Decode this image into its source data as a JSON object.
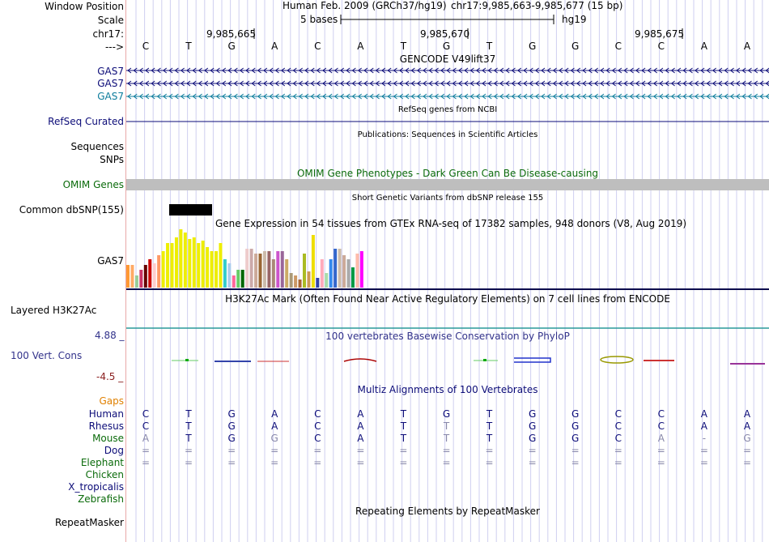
{
  "header": {
    "window_position_label": "Window Position",
    "scale_label": "Scale",
    "chrom_label": "chr17:",
    "strand_label": "--->",
    "assembly": "Human Feb. 2009 (GRCh37/hg19)",
    "position": "chr17:9,985,663-9,985,677 (15 bp)",
    "scale_text": "5 bases",
    "db": "hg19",
    "coords": [
      "9,985,665",
      "9,985,670",
      "9,985,675"
    ]
  },
  "sequence": [
    "C",
    "T",
    "G",
    "A",
    "C",
    "A",
    "T",
    "G",
    "T",
    "G",
    "G",
    "C",
    "C",
    "A",
    "A"
  ],
  "gencode": {
    "title": "GENCODE V49lift37",
    "tracks": [
      {
        "label": "GAS7",
        "color": "#0c0c78"
      },
      {
        "label": "GAS7",
        "color": "#0c0c78"
      },
      {
        "label": "GAS7",
        "color": "#0c7c9c"
      }
    ]
  },
  "refseq": {
    "title": "RefSeq genes from NCBI",
    "label": "RefSeq Curated",
    "color": "#0c0c78"
  },
  "publications": {
    "title": "Publications: Sequences in Scientific Articles",
    "labels": [
      "Sequences",
      "SNPs"
    ]
  },
  "omim": {
    "title": "OMIM Gene Phenotypes - Dark Green Can Be Disease-causing",
    "label": "OMIM Genes",
    "color": "#0b6b0b"
  },
  "dbsnp": {
    "title": "Short Genetic Variants from dbSNP release 155",
    "label": "Common dbSNP(155)"
  },
  "gtex": {
    "title": "Gene Expression in 54 tissues from GTEx RNA-seq of 17382 samples, 948 donors (V8, Aug 2019)",
    "label": "GAS7",
    "values": [
      28,
      28,
      15,
      22,
      28,
      35,
      30,
      40,
      45,
      55,
      55,
      62,
      72,
      68,
      60,
      62,
      55,
      58,
      50,
      45,
      45,
      55,
      35,
      30,
      15,
      22,
      22,
      48,
      48,
      42,
      42,
      45,
      45,
      35,
      45,
      45,
      35,
      18,
      15,
      10,
      42,
      20,
      65,
      12,
      35,
      18,
      35,
      48,
      48,
      40,
      35,
      25,
      42,
      45
    ],
    "colors": [
      "#ff9933",
      "#ffaa66",
      "#99cc99",
      "#cc3366",
      "#660000",
      "#cc0000",
      "#ffcccc",
      "#ff9966",
      "#eeee00",
      "#eeee00",
      "#eeee00",
      "#eeee00",
      "#eeee00",
      "#eeee00",
      "#eeee00",
      "#eeee00",
      "#eeee00",
      "#eeee00",
      "#eeee00",
      "#eeee00",
      "#eeee00",
      "#eeee00",
      "#33cccc",
      "#aaccee",
      "#ff6699",
      "#66cc66",
      "#006600",
      "#eecccc",
      "#ccaaaa",
      "#ccaa99",
      "#996633",
      "#ccbbaa",
      "#996666",
      "#aa8877",
      "#cc55cc",
      "#996699",
      "#ccaa66",
      "#aa9977",
      "#cc9966",
      "#aa6633",
      "#aabb22",
      "#cc9955",
      "#eedd00",
      "#3344aa",
      "#ffaabb",
      "#aaddaa",
      "#3388ee",
      "#3366cc",
      "#ccbbaa",
      "#ccaa99",
      "#aaaaaa",
      "#009944",
      "#ffbbaa",
      "#ff00ff"
    ]
  },
  "h3k27ac": {
    "title": "H3K27Ac Mark (Often Found Near Active Regulatory Elements) on 7 cell lines from ENCODE",
    "label": "Layered H3K27Ac"
  },
  "conservation": {
    "title": "100 vertebrates Basewise Conservation by PhyloP",
    "label": "100 Vert. Cons",
    "max": "4.88 _",
    "min": "-4.5 _"
  },
  "multiz": {
    "title": "Multiz Alignments of 100 Vertebrates",
    "gaps_label": "Gaps",
    "species": [
      {
        "name": "Human",
        "color": "#0c0c78",
        "bases": [
          "C",
          "T",
          "G",
          "A",
          "C",
          "A",
          "T",
          "G",
          "T",
          "G",
          "G",
          "C",
          "C",
          "A",
          "A"
        ]
      },
      {
        "name": "Rhesus",
        "color": "#0c0c78",
        "bases": [
          "C",
          "T",
          "G",
          "A",
          "C",
          "A",
          "T",
          "T",
          "T",
          "G",
          "G",
          "C",
          "C",
          "A",
          "A"
        ]
      },
      {
        "name": "Mouse",
        "color": "#0b6b0b",
        "bases": [
          "A",
          "T",
          "G",
          "G",
          "C",
          "A",
          "T",
          "T",
          "T",
          "G",
          "G",
          "C",
          "A",
          "-",
          "G"
        ]
      },
      {
        "name": "Dog",
        "color": "#0c0c78",
        "bases": [
          "=",
          "=",
          "=",
          "=",
          "=",
          "=",
          "=",
          "=",
          "=",
          "=",
          "=",
          "=",
          "=",
          "=",
          "="
        ]
      },
      {
        "name": "Elephant",
        "color": "#0b6b0b",
        "bases": [
          "=",
          "=",
          "=",
          "=",
          "=",
          "=",
          "=",
          "=",
          "=",
          "=",
          "=",
          "=",
          "=",
          "=",
          "="
        ]
      },
      {
        "name": "Chicken",
        "color": "#0b6b0b",
        "bases": []
      },
      {
        "name": "X_tropicalis",
        "color": "#0c0c78",
        "bases": []
      },
      {
        "name": "Zebrafish",
        "color": "#0b6b0b",
        "bases": []
      }
    ]
  },
  "repeatmasker": {
    "title": "Repeating Elements by RepeatMasker",
    "label": "RepeatMasker"
  }
}
